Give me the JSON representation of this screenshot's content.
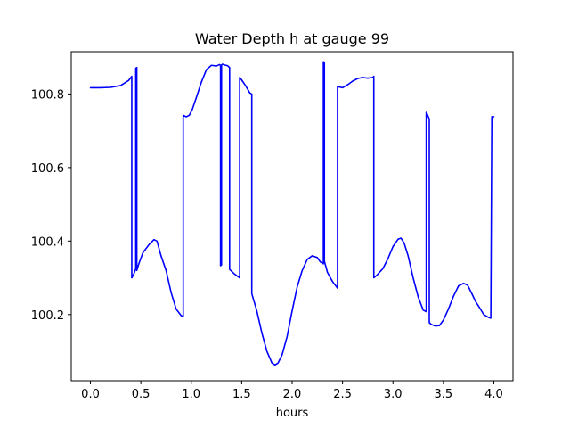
{
  "chart_data": {
    "type": "line",
    "title": "Water Depth h at gauge 99",
    "xlabel": "hours",
    "ylabel": "",
    "xlim": [
      -0.19,
      4.19
    ],
    "ylim": [
      100.02,
      100.915
    ],
    "grid": false,
    "xticks": [
      0.0,
      0.5,
      1.0,
      1.5,
      2.0,
      2.5,
      3.0,
      3.5,
      4.0
    ],
    "xtick_labels": [
      "0.0",
      "0.5",
      "1.0",
      "1.5",
      "2.0",
      "2.5",
      "3.0",
      "3.5",
      "4.0"
    ],
    "yticks": [
      100.2,
      100.4,
      100.6,
      100.8
    ],
    "ytick_labels": [
      "100.2",
      "100.4",
      "100.6",
      "100.8"
    ],
    "series": [
      {
        "name": "",
        "color": "#0000ff",
        "x": [
          0.0,
          0.1,
          0.2,
          0.3,
          0.38,
          0.41,
          0.41,
          0.43,
          0.45,
          0.45,
          0.46,
          0.46,
          0.48,
          0.52,
          0.58,
          0.63,
          0.66,
          0.7,
          0.75,
          0.8,
          0.85,
          0.9,
          0.92,
          0.92,
          0.95,
          0.98,
          1.01,
          1.05,
          1.1,
          1.15,
          1.2,
          1.25,
          1.28,
          1.29,
          1.29,
          1.3,
          1.3,
          1.31,
          1.33,
          1.36,
          1.38,
          1.38,
          1.43,
          1.48,
          1.48,
          1.5,
          1.54,
          1.58,
          1.6,
          1.6,
          1.65,
          1.7,
          1.75,
          1.8,
          1.83,
          1.86,
          1.9,
          1.95,
          2.0,
          2.05,
          2.1,
          2.15,
          2.2,
          2.25,
          2.28,
          2.3,
          2.31,
          2.31,
          2.32,
          2.32,
          2.35,
          2.4,
          2.45,
          2.45,
          2.5,
          2.55,
          2.6,
          2.65,
          2.7,
          2.75,
          2.8,
          2.81,
          2.81,
          2.84,
          2.9,
          2.95,
          3.0,
          3.05,
          3.08,
          3.11,
          3.15,
          3.2,
          3.25,
          3.3,
          3.33,
          3.33,
          3.34,
          3.35,
          3.36,
          3.36,
          3.38,
          3.42,
          3.46,
          3.5,
          3.55,
          3.6,
          3.65,
          3.7,
          3.74,
          3.78,
          3.82,
          3.86,
          3.9,
          3.93,
          3.95,
          3.96,
          3.97,
          3.98,
          4.0
        ],
        "y": [
          100.817,
          100.817,
          100.818,
          100.823,
          100.837,
          100.848,
          100.3,
          100.31,
          100.325,
          100.87,
          100.872,
          100.32,
          100.338,
          100.368,
          100.39,
          100.404,
          100.4,
          100.36,
          100.32,
          100.26,
          100.215,
          100.197,
          100.195,
          100.742,
          100.738,
          100.742,
          100.758,
          100.79,
          100.832,
          100.866,
          100.878,
          100.876,
          100.88,
          100.878,
          100.333,
          100.335,
          100.879,
          100.881,
          100.879,
          100.877,
          100.872,
          100.323,
          100.31,
          100.3,
          100.845,
          100.838,
          100.822,
          100.803,
          100.8,
          100.257,
          100.21,
          100.15,
          100.1,
          100.068,
          100.063,
          100.068,
          100.09,
          100.14,
          100.21,
          100.275,
          100.32,
          100.35,
          100.36,
          100.355,
          100.343,
          100.34,
          100.338,
          100.888,
          100.885,
          100.345,
          100.315,
          100.29,
          100.272,
          100.82,
          100.817,
          100.825,
          100.835,
          100.842,
          100.845,
          100.843,
          100.845,
          100.848,
          100.3,
          100.307,
          100.325,
          100.352,
          100.385,
          100.405,
          100.408,
          100.395,
          100.36,
          100.3,
          100.248,
          100.212,
          100.208,
          100.75,
          100.745,
          100.738,
          100.732,
          100.178,
          100.173,
          100.169,
          100.17,
          100.185,
          100.215,
          100.25,
          100.278,
          100.285,
          100.28,
          100.258,
          100.235,
          100.218,
          100.2,
          100.195,
          100.192,
          100.191,
          100.19,
          100.738,
          100.738
        ]
      }
    ]
  }
}
